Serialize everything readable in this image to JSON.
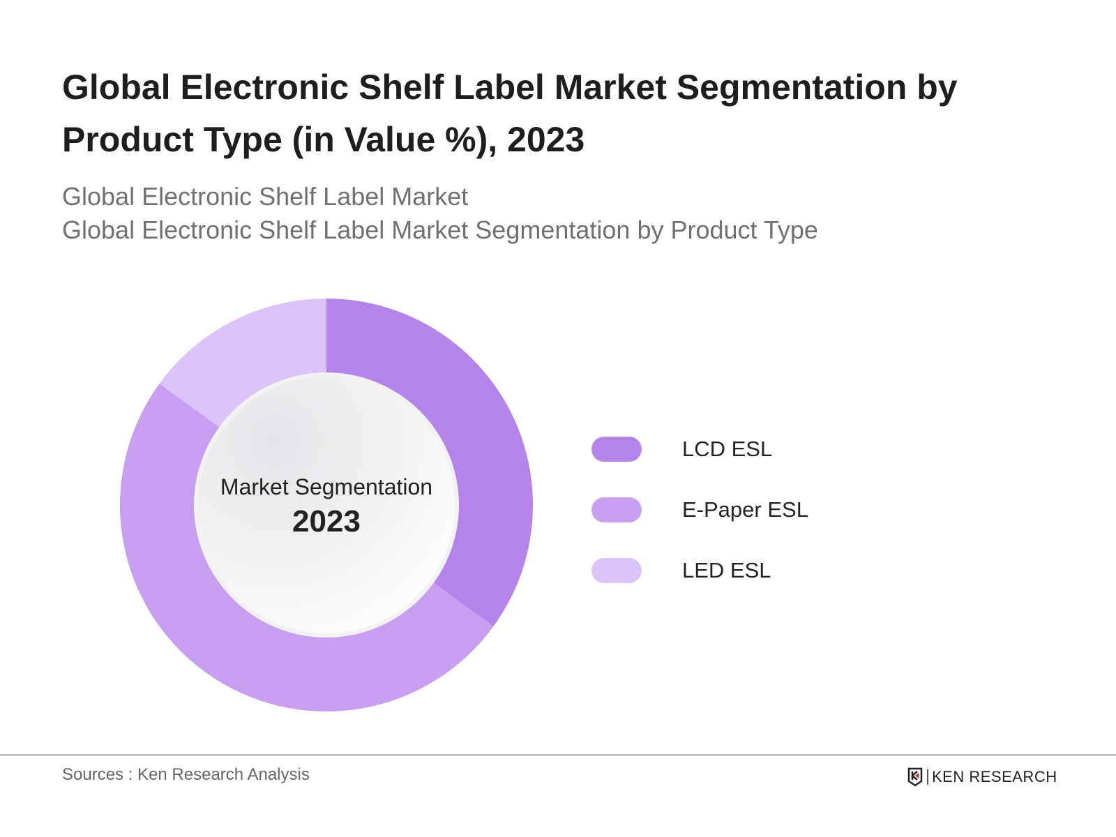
{
  "title": "Global Electronic Shelf Label Market Segmentation by Product Type (in Value %), 2023",
  "subtitle_lines": [
    "Global Electronic Shelf Label Market",
    "Global Electronic Shelf Label Market Segmentation by Product Type"
  ],
  "center": {
    "label": "Market Segmentation",
    "year": "2023"
  },
  "footer": {
    "source": "Sources : Ken Research Analysis",
    "logo": "KEN RESEARCH"
  },
  "chart_data": {
    "type": "pie",
    "donut": true,
    "title": "Global Electronic Shelf Label Market Segmentation by Product Type (in Value %), 2023",
    "categories": [
      "LCD ESL",
      "E-Paper ESL",
      "LED ESL"
    ],
    "values": [
      35,
      50,
      15
    ],
    "colors": [
      "#b584eb",
      "#c79ef0",
      "#dcc3f7"
    ],
    "legend_position": "right"
  }
}
